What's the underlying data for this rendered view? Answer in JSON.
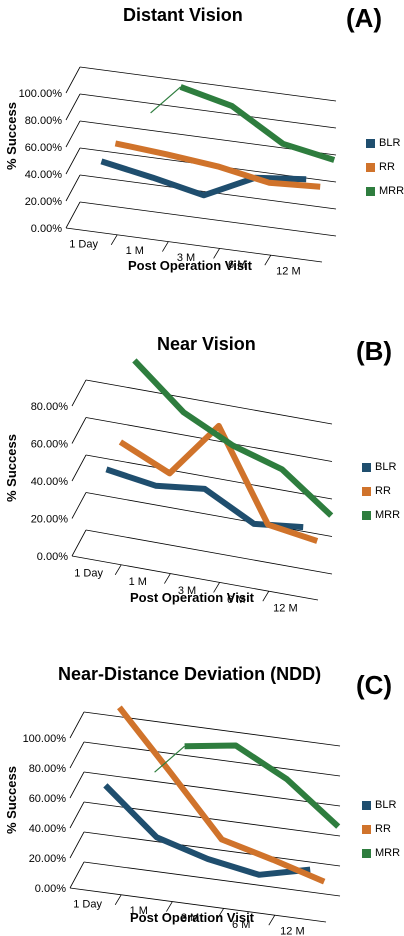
{
  "colors": {
    "BLR": "#1f4e6e",
    "RR": "#d0732b",
    "MRR": "#2e7d3e"
  },
  "chart_data": [
    {
      "type": "line",
      "title": "Distant Vision",
      "panel_label": "(A)",
      "xlabel": "Post Operation Visit",
      "ylabel": "% Success",
      "categories": [
        "1 Day",
        "1 M",
        "3 M",
        "6 M",
        "12 M"
      ],
      "yticks": [
        "0.00%",
        "20.00%",
        "40.00%",
        "60.00%",
        "80.00%",
        "100.00%"
      ],
      "ylim": [
        0,
        100
      ],
      "legend_position": "right",
      "series": [
        {
          "name": "BLR",
          "values": [
            40,
            33,
            25,
            43,
            47
          ]
        },
        {
          "name": "RR",
          "values": [
            40,
            37,
            33,
            26,
            28
          ]
        },
        {
          "name": "MRR",
          "values": [
            null,
            75,
            66,
            43,
            36
          ]
        }
      ]
    },
    {
      "type": "line",
      "title": "Near Vision",
      "panel_label": "(B)",
      "xlabel": "Post Operation Visit",
      "ylabel": "% Success",
      "categories": [
        "1 Day",
        "1 M",
        "3 M",
        "6 M",
        "12 M"
      ],
      "yticks": [
        "0.00%",
        "20.00%",
        "40.00%",
        "60.00%",
        "80.00%"
      ],
      "ylim": [
        0,
        80
      ],
      "legend_position": "right",
      "series": [
        {
          "name": "BLR",
          "values": [
            40,
            36,
            39,
            25,
            28
          ]
        },
        {
          "name": "RR",
          "values": [
            45,
            33,
            63,
            15,
            11
          ]
        },
        {
          "name": "MRR",
          "values": [
            80,
            57,
            44,
            36,
            16
          ]
        }
      ]
    },
    {
      "type": "line",
      "title": "Near-Distance Deviation (NDD)",
      "panel_label": "(C)",
      "xlabel": "Post Operation Visit",
      "ylabel": "% Success",
      "categories": [
        "1 Day",
        "1 M",
        "3 M",
        "6 M",
        "12 M"
      ],
      "yticks": [
        "0.00%",
        "20.00%",
        "40.00%",
        "60.00%",
        "80.00%",
        "100.00%"
      ],
      "ylim": [
        0,
        100
      ],
      "legend_position": "right",
      "series": [
        {
          "name": "BLR",
          "values": [
            60,
            30,
            20,
            14,
            22
          ]
        },
        {
          "name": "RR",
          "values": [
            100,
            61,
            21,
            12,
            2
          ]
        },
        {
          "name": "MRR",
          "values": [
            null,
            68,
            73,
            55,
            28
          ]
        }
      ]
    }
  ]
}
